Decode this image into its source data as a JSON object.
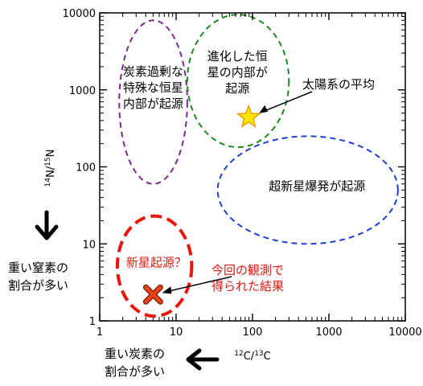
{
  "chart_data": {
    "type": "scatter",
    "title": "",
    "xlabel": "12C/13C",
    "ylabel": "14N/15N",
    "xscale": "log",
    "yscale": "log",
    "xlim": [
      1,
      10000
    ],
    "ylim": [
      1,
      10000
    ],
    "x_ticks": [
      "1",
      "10",
      "100",
      "1000",
      "10000"
    ],
    "y_ticks": [
      "1",
      "10",
      "100",
      "1000",
      "10000"
    ],
    "grid": false,
    "regions": [
      {
        "label": "炭素過剰な\n特殊な恒星\n内部が起源",
        "color": "#7b2a8c",
        "style": "dashed",
        "center": [
          5,
          1000
        ],
        "x_range": [
          1.8,
          14
        ],
        "y_range": [
          60,
          8000
        ]
      },
      {
        "label": "進化した恒\n星の内部が\n起源",
        "color": "#1e8a1e",
        "style": "dashed",
        "center": [
          70,
          1300
        ],
        "x_range": [
          14,
          300
        ],
        "y_range": [
          180,
          9500
        ]
      },
      {
        "label": "超新星爆発が起源",
        "color": "#1a3fd6",
        "style": "dashed",
        "center": [
          700,
          50
        ],
        "x_range": [
          35,
          8000
        ],
        "y_range": [
          10,
          250
        ]
      },
      {
        "label": "新星起源？",
        "color": "#e8160c",
        "style": "dashed-thick",
        "center": [
          5.5,
          4
        ],
        "x_range": [
          1.7,
          16
        ],
        "y_range": [
          1.15,
          23
        ]
      }
    ],
    "points": [
      {
        "name": "solar-average",
        "label": "太陽系の平均",
        "x": 89,
        "y": 440,
        "marker": "star",
        "color": "#ffe600",
        "edge": "#e8a000"
      },
      {
        "name": "this-observation",
        "label": "今回の観測で\n得られた結果",
        "x": 5,
        "y": 2.2,
        "marker": "x",
        "color": "#e8421a",
        "edge": "#7a1a00"
      }
    ],
    "annotations": [
      {
        "text": "重い窒素の\n割合が多い",
        "arrow": "down"
      },
      {
        "text": "重い炭素の\n割合が多い",
        "arrow": "left"
      }
    ]
  }
}
